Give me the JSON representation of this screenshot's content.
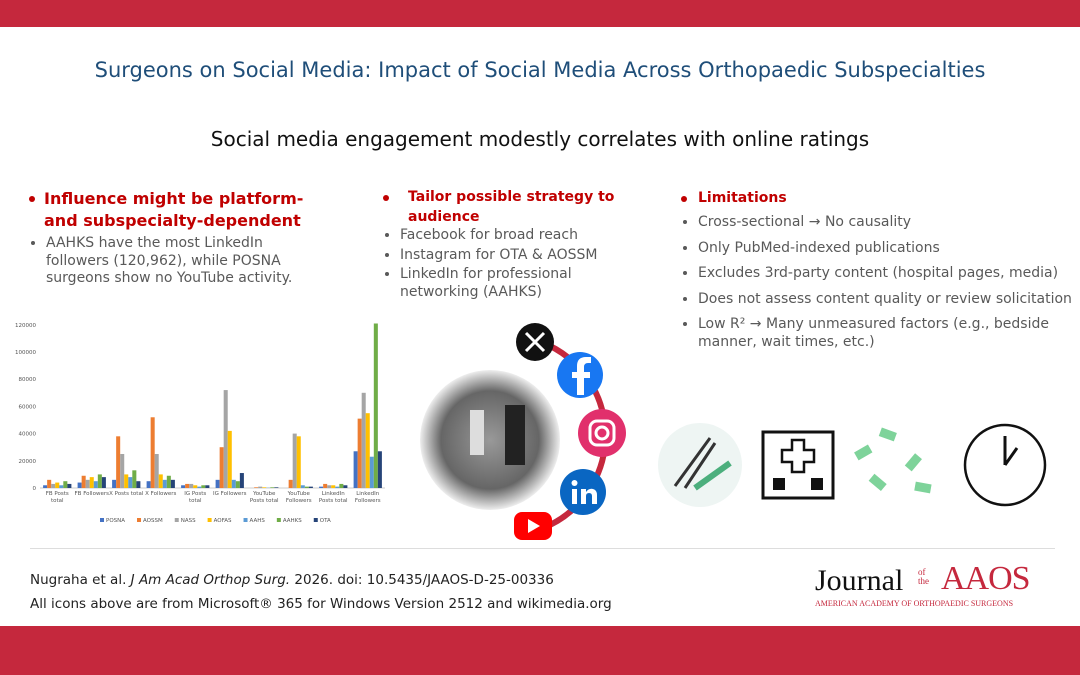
{
  "header": {
    "title": "Surgeons on Social Media: Impact of Social Media Across Orthopaedic Subspecialties",
    "subtitle": "Social media engagement modestly correlates with online ratings"
  },
  "columns": [
    {
      "heading": "Influence might be platform- and subspecialty-dependent",
      "bullets": [
        "AAHKS have the most LinkedIn followers (120,962), while POSNA surgeons show no YouTube activity."
      ]
    },
    {
      "heading": "Tailor possible strategy to audience",
      "bullets": [
        "Facebook for broad reach",
        "Instagram for OTA & AOSSM",
        "LinkedIn for professional networking (AAHKS)"
      ]
    },
    {
      "heading": "Limitations",
      "bullets": [
        "Cross-sectional → No causality",
        "Only PubMed-indexed publications",
        "Excludes 3rd-party content (hospital pages, media)",
        "Does not assess content quality or review solicitation",
        "Low R² → Many unmeasured factors (e.g., bedside manner, wait times, etc.)"
      ]
    }
  ],
  "footer": {
    "citation": [
      "Nugraha et al.",
      "J Am Acad Orthop Surg.",
      "2026. doi: 10.5435/JAAOS-D-25-00336"
    ],
    "note": "All icons above are from Microsoft® 365 for Windows Version 2512 and wikimedia.org"
  },
  "logo": {
    "journal": "Journal",
    "of_the": "of the",
    "name": "AAOS",
    "org": "AMERICAN ACADEMY OF ORTHOPAEDIC SURGEONS"
  },
  "chart_data": {
    "type": "bar",
    "categories": [
      "FB Posts total",
      "FB Followers",
      "X Posts total",
      "X Followers",
      "IG Posts total",
      "IG Followers",
      "YouTube Posts total",
      "YouTube Followers",
      "LinkedIn Posts total",
      "LinkedIn Followers"
    ],
    "series": [
      {
        "name": "POSNA",
        "color": "#4472c4",
        "values": [
          2000,
          4000,
          6000,
          5000,
          2000,
          6000,
          0,
          0,
          1000,
          27000
        ]
      },
      {
        "name": "AOSSM",
        "color": "#ed7d31",
        "values": [
          6000,
          9000,
          38000,
          52000,
          3000,
          30000,
          500,
          6000,
          3000,
          51000
        ]
      },
      {
        "name": "NASS",
        "color": "#a5a5a5",
        "values": [
          3000,
          6000,
          25000,
          25000,
          3000,
          72000,
          1000,
          40000,
          2000,
          70000
        ]
      },
      {
        "name": "AOFAS",
        "color": "#ffc000",
        "values": [
          4000,
          8000,
          10000,
          10000,
          2000,
          42000,
          500,
          38000,
          2000,
          55000
        ]
      },
      {
        "name": "AAHS",
        "color": "#5b9bd5",
        "values": [
          2000,
          5000,
          8000,
          6000,
          1000,
          6000,
          200,
          2000,
          1000,
          23000
        ]
      },
      {
        "name": "AAHKS",
        "color": "#70ad47",
        "values": [
          5000,
          10000,
          13000,
          9000,
          2000,
          5000,
          500,
          1000,
          3000,
          120962
        ]
      },
      {
        "name": "OTA",
        "color": "#264478",
        "values": [
          3000,
          8000,
          5000,
          6000,
          2000,
          11000,
          500,
          1000,
          2000,
          27000
        ]
      }
    ],
    "ylim": [
      0,
      125000
    ],
    "yticks": [
      0,
      20000,
      40000,
      60000,
      80000,
      100000,
      120000
    ],
    "grid": false
  }
}
